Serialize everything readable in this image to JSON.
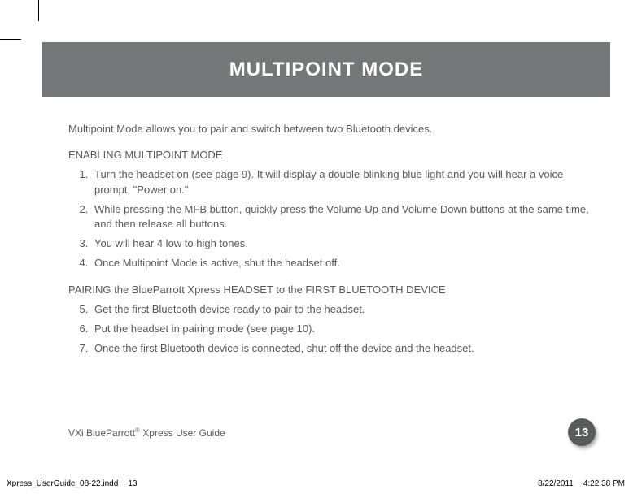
{
  "header": {
    "title": "MULTIPOINT MODE"
  },
  "intro": "Multipoint Mode allows you to pair and switch between two Bluetooth devices.",
  "section1": {
    "heading": "ENABLING MULTIPOINT MODE",
    "items": [
      "Turn the headset on (see page 9). It will display a double-blinking blue light and you will hear a voice prompt, \"Power on.\"",
      "While pressing the MFB button, quickly press the Volume Up and Volume Down buttons at the same time, and then release all buttons.",
      "You will hear 4 low to high tones.",
      "Once Multipoint Mode is active, shut the headset off."
    ]
  },
  "section2": {
    "heading": "PAIRING the BlueParrott Xpress HEADSET to the FIRST BLUETOOTH DEVICE",
    "items": [
      "Get the first Bluetooth device ready to pair to the headset.",
      "Put the headset in pairing mode (see page 10).",
      "Once the first Bluetooth device is connected, shut off the device and the headset."
    ]
  },
  "footer": {
    "guide_prefix": "VXi BlueParrott",
    "guide_suffix": " Xpress User Guide",
    "page_number": "13"
  },
  "slug": {
    "file": "Xpress_UserGuide_08-22.indd",
    "page": "13",
    "date": "8/22/2011",
    "time": "4:22:38 PM"
  },
  "colors": {
    "header_bg": "#757677",
    "text": "#59595b",
    "badge_bg": "#595a5c"
  }
}
